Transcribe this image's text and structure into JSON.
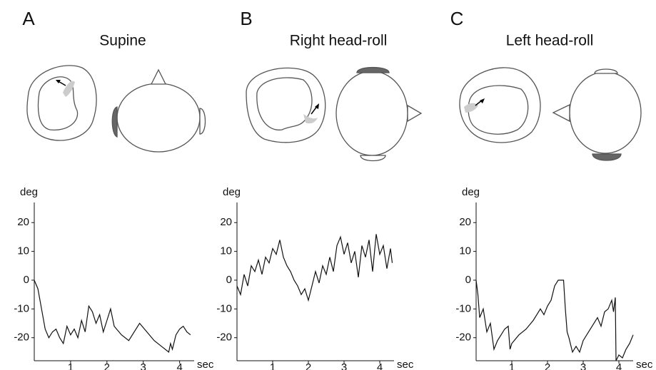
{
  "chart_data": [
    {
      "type": "line",
      "panel": "A",
      "title": "Supine",
      "ylabel": "deg",
      "xlabel": "sec",
      "xlim": [
        0,
        4.4
      ],
      "ylim": [
        -28,
        27
      ],
      "xticks": [
        1,
        2,
        3,
        4
      ],
      "yticks": [
        -20,
        -10,
        0,
        10,
        20
      ],
      "color": "#111",
      "x": [
        0,
        0.1,
        0.2,
        0.3,
        0.4,
        0.5,
        0.6,
        0.7,
        0.8,
        0.9,
        1.0,
        1.1,
        1.2,
        1.3,
        1.4,
        1.5,
        1.6,
        1.7,
        1.8,
        1.9,
        2.0,
        2.1,
        2.2,
        2.4,
        2.6,
        2.8,
        2.9,
        3.1,
        3.3,
        3.5,
        3.7,
        3.75,
        3.8,
        3.9,
        4.0,
        4.1,
        4.2,
        4.3
      ],
      "values": [
        0,
        -3,
        -10,
        -17,
        -20,
        -18,
        -17,
        -20,
        -22,
        -16,
        -19,
        -17,
        -20,
        -14,
        -18,
        -9,
        -11,
        -15,
        -12,
        -18,
        -14,
        -10,
        -16,
        -19,
        -21,
        -17,
        -15,
        -18,
        -21,
        -23,
        -25,
        -22,
        -24,
        -19,
        -17,
        -16,
        -18,
        -19
      ]
    },
    {
      "type": "line",
      "panel": "B",
      "title": "Right head-roll",
      "ylabel": "deg",
      "xlabel": "sec",
      "xlim": [
        0,
        4.4
      ],
      "ylim": [
        -28,
        27
      ],
      "xticks": [
        1,
        2,
        3,
        4
      ],
      "yticks": [
        -20,
        -10,
        0,
        10,
        20
      ],
      "color": "#111",
      "x": [
        0,
        0.1,
        0.2,
        0.3,
        0.4,
        0.5,
        0.6,
        0.7,
        0.8,
        0.9,
        1.0,
        1.1,
        1.2,
        1.3,
        1.4,
        1.5,
        1.6,
        1.7,
        1.8,
        1.9,
        2.0,
        2.1,
        2.2,
        2.3,
        2.4,
        2.5,
        2.6,
        2.7,
        2.8,
        2.9,
        3.0,
        3.1,
        3.2,
        3.3,
        3.4,
        3.5,
        3.6,
        3.7,
        3.8,
        3.9,
        4.0,
        4.1,
        4.2,
        4.3,
        4.35
      ],
      "values": [
        -2,
        -5,
        2,
        -2,
        5,
        3,
        7,
        2,
        8,
        6,
        11,
        9,
        14,
        8,
        5,
        3,
        0,
        -2,
        -5,
        -3,
        -7,
        -2,
        3,
        -1,
        5,
        2,
        8,
        3,
        12,
        15,
        9,
        13,
        6,
        10,
        1,
        12,
        8,
        14,
        3,
        16,
        9,
        12,
        4,
        11,
        6
      ]
    },
    {
      "type": "line",
      "panel": "C",
      "title": "Left head-roll",
      "ylabel": "deg",
      "xlabel": "sec",
      "xlim": [
        0,
        4.4
      ],
      "ylim": [
        -28,
        27
      ],
      "xticks": [
        1,
        2,
        3,
        4
      ],
      "yticks": [
        -20,
        -10,
        0,
        10,
        20
      ],
      "color": "#111",
      "x": [
        0,
        0.05,
        0.1,
        0.2,
        0.3,
        0.4,
        0.5,
        0.6,
        0.7,
        0.8,
        0.9,
        0.95,
        1.0,
        1.2,
        1.4,
        1.6,
        1.7,
        1.8,
        1.9,
        2.0,
        2.1,
        2.2,
        2.3,
        2.45,
        2.5,
        2.55,
        2.6,
        2.7,
        2.8,
        2.9,
        3.0,
        3.2,
        3.4,
        3.5,
        3.6,
        3.7,
        3.8,
        3.85,
        3.9,
        3.92,
        4.0,
        4.1,
        4.2,
        4.3,
        4.4
      ],
      "values": [
        0,
        -5,
        -13,
        -10,
        -18,
        -15,
        -24,
        -21,
        -19,
        -17,
        -16,
        -24,
        -22,
        -19,
        -17,
        -14,
        -12,
        -10,
        -12,
        -9,
        -7,
        -2,
        0,
        0,
        -10,
        -18,
        -20,
        -25,
        -23,
        -25,
        -21,
        -17,
        -13,
        -16,
        -11,
        -10,
        -7,
        -11,
        -6,
        -28,
        -26,
        -27,
        -24,
        -22,
        -19
      ]
    }
  ]
}
